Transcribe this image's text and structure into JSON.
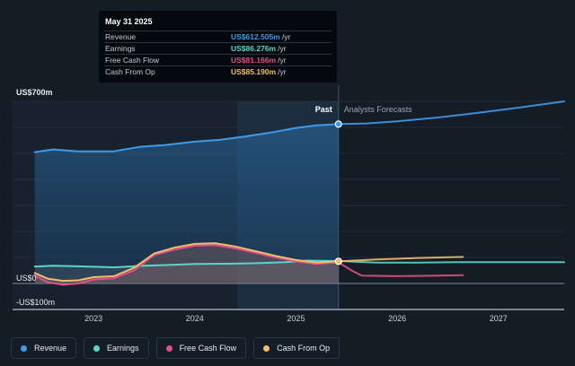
{
  "tooltip": {
    "date": "May 31 2025",
    "rows": [
      {
        "label": "Revenue",
        "value": "US$612.505m",
        "unit": "/yr",
        "color": "#3d9be9"
      },
      {
        "label": "Earnings",
        "value": "US$86.276m",
        "unit": "/yr",
        "color": "#5ad6c9"
      },
      {
        "label": "Free Cash Flow",
        "value": "US$81.166m",
        "unit": "/yr",
        "color": "#e0508a"
      },
      {
        "label": "Cash From Op",
        "value": "US$85.190m",
        "unit": "/yr",
        "color": "#f2be6c"
      }
    ]
  },
  "chart_data": {
    "type": "area",
    "ylim": [
      -100,
      700
    ],
    "y_ticks": [
      {
        "value": 700,
        "label": "US$700m"
      },
      {
        "value": 0,
        "label": "US$0"
      },
      {
        "value": -100,
        "label": "-US$100m"
      }
    ],
    "x_ticks": [
      {
        "value": 2023,
        "label": "2023"
      },
      {
        "value": 2024,
        "label": "2024"
      },
      {
        "value": 2025,
        "label": "2025"
      },
      {
        "value": 2026,
        "label": "2026"
      },
      {
        "value": 2027,
        "label": "2027"
      }
    ],
    "xlim": [
      2022.2,
      2027.65
    ],
    "past_label": "Past",
    "forecast_label": "Analysts Forecasts",
    "past_end": 2025.42,
    "highlight_start": 2024.42,
    "grid": true,
    "legend_position": "bottom",
    "series": [
      {
        "name": "Revenue",
        "color": "#3d9be9",
        "area": true,
        "past": [
          [
            2022.42,
            505
          ],
          [
            2022.6,
            515
          ],
          [
            2022.85,
            508
          ],
          [
            2023.2,
            508
          ],
          [
            2023.45,
            525
          ],
          [
            2023.7,
            532
          ],
          [
            2024.0,
            545
          ],
          [
            2024.25,
            552
          ],
          [
            2024.5,
            565
          ],
          [
            2024.75,
            580
          ],
          [
            2025.0,
            598
          ],
          [
            2025.2,
            608
          ],
          [
            2025.42,
            612.5
          ]
        ],
        "forecast": [
          [
            2025.42,
            612.5
          ],
          [
            2025.7,
            615
          ],
          [
            2026.0,
            623
          ],
          [
            2026.4,
            638
          ],
          [
            2026.8,
            656
          ],
          [
            2027.2,
            676
          ],
          [
            2027.65,
            700
          ]
        ]
      },
      {
        "name": "Earnings",
        "color": "#5ad6c9",
        "area": false,
        "past": [
          [
            2022.42,
            65
          ],
          [
            2022.6,
            68
          ],
          [
            2022.85,
            66
          ],
          [
            2023.2,
            62
          ],
          [
            2023.5,
            68
          ],
          [
            2023.8,
            72
          ],
          [
            2024.0,
            75
          ],
          [
            2024.3,
            76
          ],
          [
            2024.6,
            78
          ],
          [
            2024.9,
            82
          ],
          [
            2025.1,
            88
          ],
          [
            2025.42,
            86.3
          ]
        ],
        "forecast": [
          [
            2025.42,
            86.3
          ],
          [
            2025.8,
            80
          ],
          [
            2026.2,
            80
          ],
          [
            2026.6,
            82
          ],
          [
            2027.0,
            82
          ],
          [
            2027.65,
            82
          ]
        ]
      },
      {
        "name": "Free Cash Flow",
        "color": "#e0508a",
        "area": false,
        "past": [
          [
            2022.42,
            30
          ],
          [
            2022.55,
            5
          ],
          [
            2022.7,
            -5
          ],
          [
            2022.85,
            0
          ],
          [
            2023.0,
            15
          ],
          [
            2023.2,
            20
          ],
          [
            2023.4,
            50
          ],
          [
            2023.6,
            110
          ],
          [
            2023.8,
            130
          ],
          [
            2024.0,
            145
          ],
          [
            2024.2,
            148
          ],
          [
            2024.4,
            135
          ],
          [
            2024.6,
            118
          ],
          [
            2024.8,
            100
          ],
          [
            2025.0,
            85
          ],
          [
            2025.2,
            75
          ],
          [
            2025.42,
            81.2
          ]
        ],
        "forecast": [
          [
            2025.42,
            81.2
          ],
          [
            2025.55,
            50
          ],
          [
            2025.65,
            30
          ],
          [
            2026.0,
            28
          ],
          [
            2026.4,
            30
          ],
          [
            2026.65,
            32
          ]
        ]
      },
      {
        "name": "Cash From Op",
        "color": "#f2be6c",
        "area": false,
        "past": [
          [
            2022.42,
            40
          ],
          [
            2022.55,
            18
          ],
          [
            2022.7,
            10
          ],
          [
            2022.85,
            12
          ],
          [
            2023.0,
            24
          ],
          [
            2023.2,
            28
          ],
          [
            2023.4,
            60
          ],
          [
            2023.6,
            115
          ],
          [
            2023.8,
            138
          ],
          [
            2024.0,
            152
          ],
          [
            2024.2,
            155
          ],
          [
            2024.4,
            142
          ],
          [
            2024.6,
            124
          ],
          [
            2024.8,
            106
          ],
          [
            2025.0,
            90
          ],
          [
            2025.2,
            80
          ],
          [
            2025.42,
            85.2
          ]
        ],
        "forecast": [
          [
            2025.42,
            85.2
          ],
          [
            2025.8,
            92
          ],
          [
            2026.2,
            98
          ],
          [
            2026.65,
            102
          ]
        ]
      }
    ]
  },
  "legend": [
    {
      "label": "Revenue",
      "color": "#3d9be9"
    },
    {
      "label": "Earnings",
      "color": "#5ad6c9"
    },
    {
      "label": "Free Cash Flow",
      "color": "#e0508a"
    },
    {
      "label": "Cash From Op",
      "color": "#f2be6c"
    }
  ]
}
